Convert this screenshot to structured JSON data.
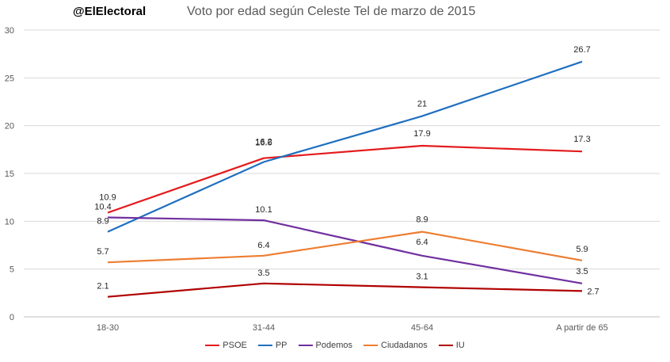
{
  "header": {
    "brand": "@ElElectoral",
    "title": "Voto por edad según Celeste Tel de marzo de 2015"
  },
  "chart_data": {
    "type": "line",
    "title": "Voto por edad según Celeste Tel de marzo de 2015",
    "categories": [
      "18-30",
      "31-44",
      "45-64",
      "A partir de 65"
    ],
    "ylim": [
      0,
      30
    ],
    "yticks": [
      0,
      5,
      10,
      15,
      20,
      25,
      30
    ],
    "grid": true,
    "legend_position": "bottom",
    "series": [
      {
        "name": "PSOE",
        "color": "#e41a1c",
        "values": [
          10.9,
          16.6,
          17.9,
          17.3
        ],
        "labels": [
          "10.9",
          "16.6",
          "17.9",
          "17.3"
        ]
      },
      {
        "name": "PP",
        "color": "#1f6fbf",
        "values": [
          8.9,
          16.2,
          21,
          26.7
        ],
        "labels": [
          "8.9",
          "16.2",
          "21",
          "26.7"
        ]
      },
      {
        "name": "Podemos",
        "color": "#7030a0",
        "values": [
          10.4,
          10.1,
          6.4,
          3.5
        ],
        "labels": [
          "10.4",
          "10.1",
          "6.4",
          "3.5"
        ]
      },
      {
        "name": "Ciudadanos",
        "color": "#ed7d31",
        "values": [
          5.7,
          6.4,
          8.9,
          5.9
        ],
        "labels": [
          "5.7",
          "6.4",
          "8.9",
          "5.9"
        ]
      },
      {
        "name": "IU",
        "color": "#b00000",
        "values": [
          2.1,
          3.5,
          3.1,
          2.7
        ],
        "labels": [
          "2.1",
          "3.5",
          "3.1",
          "2.7"
        ]
      }
    ]
  }
}
